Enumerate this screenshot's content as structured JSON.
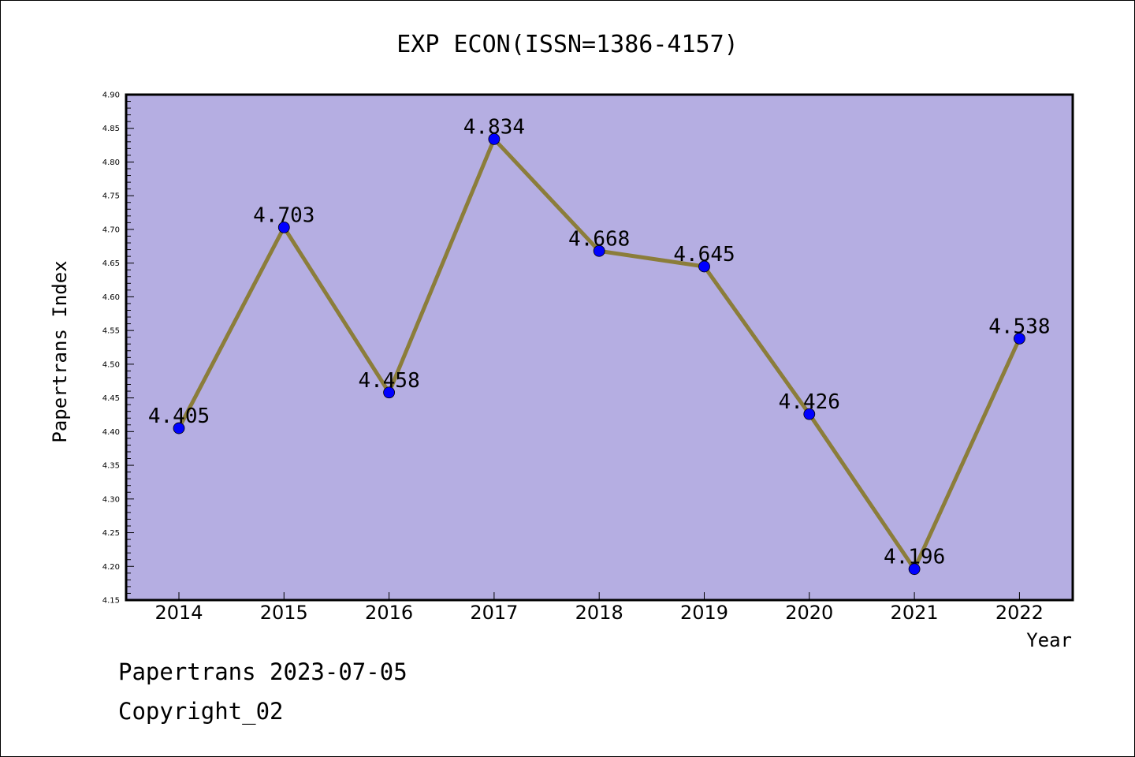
{
  "chart_data": {
    "type": "line",
    "title": "EXP ECON(ISSN=1386-4157)",
    "xlabel": "Year",
    "ylabel": "Papertrans Index",
    "categories": [
      "2014",
      "2015",
      "2016",
      "2017",
      "2018",
      "2019",
      "2020",
      "2021",
      "2022"
    ],
    "values": [
      4.405,
      4.703,
      4.458,
      4.834,
      4.668,
      4.645,
      4.426,
      4.196,
      4.538
    ],
    "data_labels": [
      "4.405",
      "4.703",
      "4.458",
      "4.834",
      "4.668",
      "4.645",
      "4.426",
      "4.196",
      "4.538"
    ],
    "ylim": [
      4.15,
      4.9
    ],
    "yticks": [
      "4.15",
      "4.20",
      "4.25",
      "4.30",
      "4.35",
      "4.40",
      "4.45",
      "4.50",
      "4.55",
      "4.60",
      "4.65",
      "4.70",
      "4.75",
      "4.80",
      "4.85",
      "4.90"
    ],
    "grid": false,
    "colors": {
      "plot_background": "#b5aee2",
      "line": "#8b7d3a",
      "marker": "#0000ff"
    }
  },
  "footer": {
    "line1": "Papertrans 2023-07-05",
    "line2": "Copyright_02"
  }
}
